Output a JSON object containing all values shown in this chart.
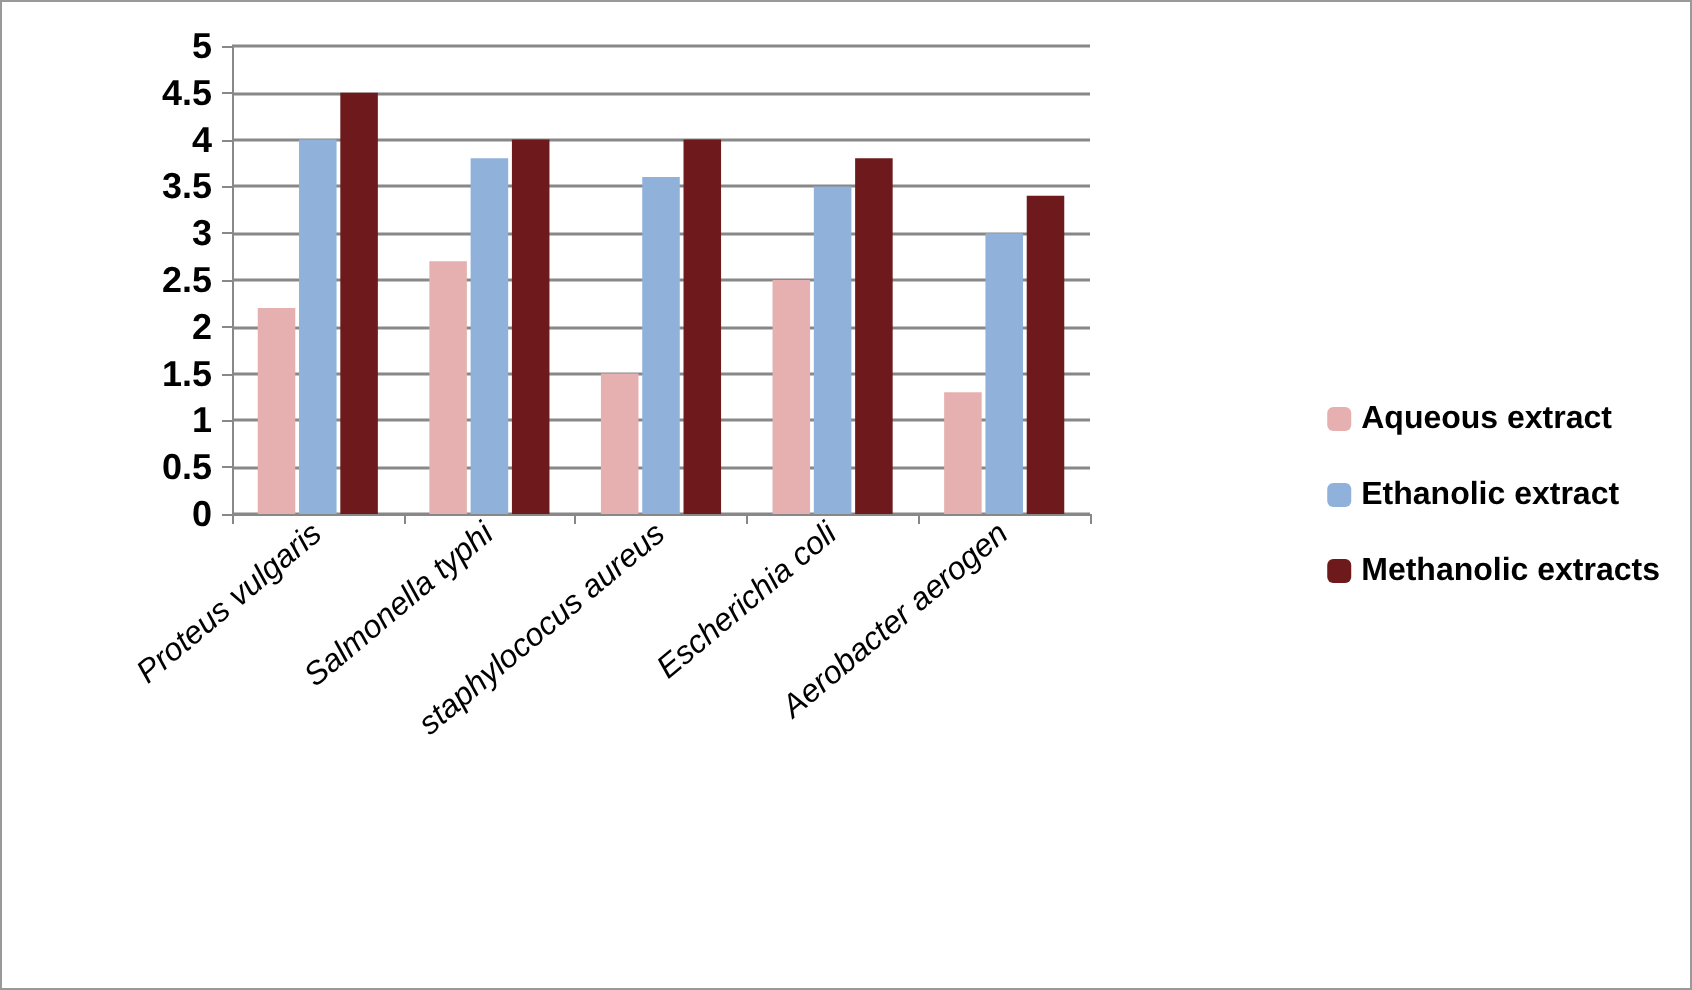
{
  "chart_data": {
    "type": "bar",
    "categories": [
      "Proteus vulgaris",
      "Salmonella typhi",
      "staphylococus aureus",
      "Escherichia coli",
      "Aerobacter aerogen"
    ],
    "series": [
      {
        "name": "Aqueous extract",
        "color": "#e6b0b0",
        "values": [
          2.2,
          2.7,
          1.5,
          2.5,
          1.3
        ]
      },
      {
        "name": "Ethanolic extract",
        "color": "#8fb1da",
        "values": [
          4.0,
          3.8,
          3.6,
          3.5,
          3.0
        ]
      },
      {
        "name": "Methanolic extracts",
        "color": "#6e1a1c",
        "values": [
          4.5,
          4.0,
          4.0,
          3.8,
          3.4
        ]
      }
    ],
    "ylim": [
      0,
      5
    ],
    "yticks": [
      0,
      0.5,
      1,
      1.5,
      2,
      2.5,
      3,
      3.5,
      4,
      4.5,
      5
    ],
    "grid": "y",
    "legend": "right"
  }
}
